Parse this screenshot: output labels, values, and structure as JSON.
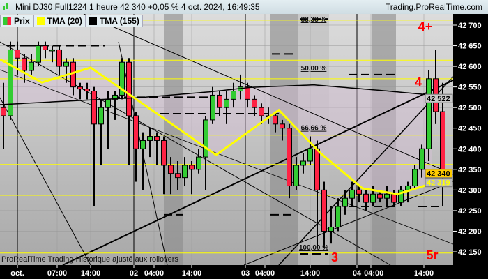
{
  "header": {
    "title": "Mini DJ30 Full1224 1 heure 42 340 +0,05 % 4 oct. 2024, 16:49:35",
    "site": "Trading.ProRealTime.com"
  },
  "legend": [
    {
      "label": "Prix",
      "colors": [
        "#33cc33",
        "#ff2244"
      ]
    },
    {
      "label": "TMA (20)",
      "color": "#ffff00"
    },
    {
      "label": "TMA (155)",
      "color": "#000000"
    }
  ],
  "note": "ProRealTime Trading Historique ajusté aux rollovers",
  "chart_data": {
    "type": "candlestick",
    "yticks": [
      42700,
      42650,
      42600,
      42550,
      42500,
      42450,
      42400,
      42350,
      42300,
      42250,
      42200,
      42150
    ],
    "ylim": [
      42120,
      42730
    ],
    "yticklabels": [
      "42 700",
      "42 650",
      "42 600",
      "42 550",
      "42 500",
      "42 450",
      "42 400",
      "42 350",
      "42 300",
      "42 250",
      "42 200",
      "42 150"
    ],
    "xticks": [
      {
        "label": "oct.",
        "i": 2
      },
      {
        "label": "07:00",
        "i": 7.7
      },
      {
        "label": "14:00",
        "i": 12.5
      },
      {
        "label": "02",
        "i": 18.7
      },
      {
        "label": "04:00",
        "i": 21.6
      },
      {
        "label": "14:00",
        "i": 27
      },
      {
        "label": "03",
        "i": 34.7
      },
      {
        "label": "04:00",
        "i": 37.5
      },
      {
        "label": "14:00",
        "i": 44
      },
      {
        "label": "04",
        "i": 50.7
      },
      {
        "label": "04:00",
        "i": 52.7
      },
      {
        "label": "14:00",
        "i": 60.3
      }
    ],
    "candles": [
      [
        42500,
        42560,
        42400,
        42480
      ],
      [
        42480,
        42660,
        42470,
        42640
      ],
      [
        42640,
        42660,
        42580,
        42620
      ],
      [
        42620,
        42630,
        42560,
        42590
      ],
      [
        42590,
        42630,
        42580,
        42610
      ],
      [
        42610,
        42660,
        42600,
        42650
      ],
      [
        42650,
        42660,
        42620,
        42640
      ],
      [
        42640,
        42650,
        42610,
        42640
      ],
      [
        42640,
        42650,
        42580,
        42600
      ],
      [
        42600,
        42620,
        42560,
        42610
      ],
      [
        42610,
        42620,
        42530,
        42550
      ],
      [
        42550,
        42560,
        42520,
        42545
      ],
      [
        42545,
        42560,
        42520,
        42540
      ],
      [
        42540,
        42550,
        42260,
        42460
      ],
      [
        42460,
        42520,
        42360,
        42500
      ],
      [
        42500,
        42540,
        42400,
        42520
      ],
      [
        42520,
        42540,
        42470,
        42530
      ],
      [
        42530,
        42620,
        42520,
        42610
      ],
      [
        42610,
        42620,
        42360,
        42480
      ],
      [
        42480,
        42490,
        42320,
        42400
      ],
      [
        42400,
        42440,
        42300,
        42420
      ],
      [
        42420,
        42450,
        42380,
        42430
      ],
      [
        42430,
        42440,
        42360,
        42420
      ],
      [
        42420,
        42430,
        42290,
        42360
      ],
      [
        42360,
        42380,
        42290,
        42340
      ],
      [
        42340,
        42370,
        42300,
        42330
      ],
      [
        42330,
        42380,
        42310,
        42360
      ],
      [
        42360,
        42370,
        42290,
        42350
      ],
      [
        42350,
        42400,
        42340,
        42380
      ],
      [
        42380,
        42480,
        42300,
        42470
      ],
      [
        42470,
        42550,
        42460,
        42530
      ],
      [
        42530,
        42540,
        42480,
        42500
      ],
      [
        42500,
        42540,
        42460,
        42520
      ],
      [
        42520,
        42560,
        42500,
        42540
      ],
      [
        42540,
        42580,
        42520,
        42550
      ],
      [
        42550,
        42560,
        42500,
        42520
      ],
      [
        42520,
        42530,
        42480,
        42500
      ],
      [
        42500,
        42510,
        42460,
        42480
      ],
      [
        42480,
        42500,
        42460,
        42480
      ],
      [
        42480,
        42490,
        42440,
        42460
      ],
      [
        42460,
        42470,
        42420,
        42450
      ],
      [
        42450,
        42460,
        42280,
        42310
      ],
      [
        42310,
        42380,
        42300,
        42360
      ],
      [
        42360,
        42390,
        42340,
        42370
      ],
      [
        42370,
        42430,
        42360,
        42400
      ],
      [
        42400,
        42420,
        42160,
        42300
      ],
      [
        42300,
        42320,
        42160,
        42200
      ],
      [
        42200,
        42260,
        42170,
        42210
      ],
      [
        42210,
        42280,
        42200,
        42260
      ],
      [
        42260,
        42300,
        42240,
        42280
      ],
      [
        42280,
        42320,
        42260,
        42300
      ],
      [
        42300,
        42310,
        42270,
        42290
      ],
      [
        42290,
        42300,
        42250,
        42270
      ],
      [
        42270,
        42310,
        42260,
        42290
      ],
      [
        42290,
        42300,
        42270,
        42280
      ],
      [
        42280,
        42310,
        42260,
        42290
      ],
      [
        42290,
        42300,
        42260,
        42270
      ],
      [
        42270,
        42310,
        42260,
        42300
      ],
      [
        42300,
        42320,
        42270,
        42310
      ],
      [
        42310,
        42360,
        42300,
        42350
      ],
      [
        42350,
        42410,
        42330,
        42400
      ],
      [
        42400,
        42590,
        42370,
        42570
      ],
      [
        42570,
        42640,
        42460,
        42490
      ],
      [
        42490,
        42560,
        42260,
        42340
      ]
    ],
    "tma20": [
      [
        0,
        42617
      ],
      [
        6,
        42561
      ],
      [
        13,
        42597
      ],
      [
        25,
        42456
      ],
      [
        31,
        42385
      ],
      [
        40,
        42494
      ],
      [
        46,
        42389
      ],
      [
        52,
        42304
      ],
      [
        57,
        42290
      ],
      [
        62,
        42316
      ]
    ],
    "tma155": [
      [
        0,
        42507
      ],
      [
        10,
        42516
      ],
      [
        20,
        42524
      ],
      [
        30,
        42538
      ],
      [
        36,
        42549
      ],
      [
        45,
        42555
      ],
      [
        55,
        42541
      ],
      [
        64,
        42527
      ]
    ],
    "hlines": [
      42712,
      42615,
      42570,
      42433,
      42362,
      42287,
      42147
    ],
    "fib_labels": [
      {
        "label": "33,33 %",
        "price": 42720
      },
      {
        "label": "50,00 %",
        "price": 42585
      },
      {
        "label": "66,66 %",
        "price": 42440
      },
      {
        "label": "100,00 %",
        "price": 42150
      }
    ],
    "annotations": [
      {
        "label": "4+",
        "price": 42700,
        "i": 60.5
      },
      {
        "label": "4",
        "price": 42565,
        "i": 59.5
      },
      {
        "label": "3",
        "price": 42140,
        "i": 47.5
      },
      {
        "label": "5r",
        "price": 42145,
        "i": 61.5
      }
    ],
    "price_tags": [
      {
        "label": "42 522",
        "price": 42522,
        "bg": "#c8c8c8",
        "fg": "#000"
      },
      {
        "label": "42 340",
        "price": 42340,
        "bg": "#ffcc00",
        "fg": "#000"
      },
      {
        "label": "42 319",
        "price": 42319,
        "bg": "#bbbbbb",
        "fg": "#ffff00"
      }
    ],
    "colors": {
      "up": "#33cc33",
      "down": "#ff2244",
      "tma20": "#ffff00",
      "tma155": "#000000",
      "hline": "#ffff00",
      "annotation": "#ff0000"
    }
  }
}
